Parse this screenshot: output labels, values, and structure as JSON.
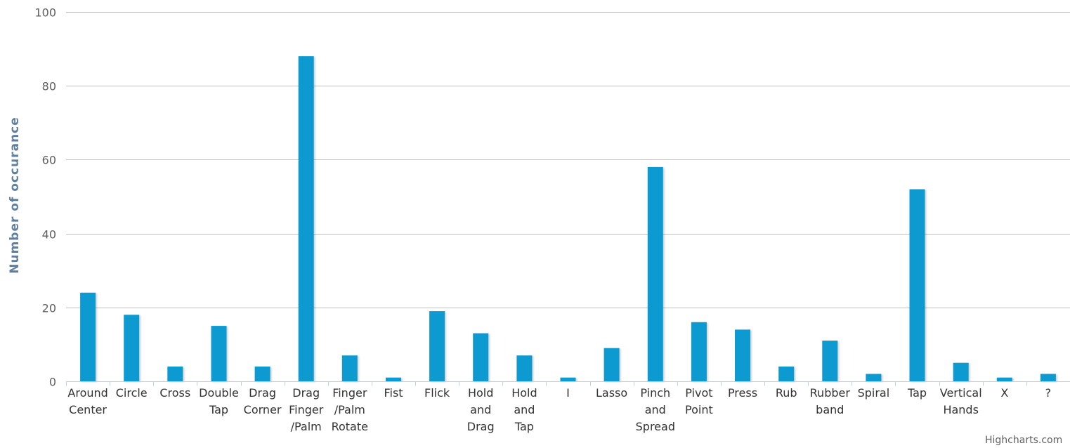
{
  "chart_data": {
    "type": "bar",
    "title": "",
    "xlabel": "",
    "ylabel": "Number of occurance",
    "ylim": [
      0,
      100
    ],
    "yticks": [
      0,
      20,
      40,
      60,
      80,
      100
    ],
    "grid": true,
    "bar_color": "#0e9ad1",
    "categories": [
      [
        "Around",
        "Center"
      ],
      [
        "Circle"
      ],
      [
        "Cross"
      ],
      [
        "Double",
        "Tap"
      ],
      [
        "Drag",
        "Corner"
      ],
      [
        "Drag",
        "Finger",
        "/Palm"
      ],
      [
        "Finger",
        "/Palm",
        "Rotate"
      ],
      [
        "Fist"
      ],
      [
        "Flick"
      ],
      [
        "Hold",
        "and",
        "Drag"
      ],
      [
        "Hold",
        "and",
        "Tap"
      ],
      [
        "I"
      ],
      [
        "Lasso"
      ],
      [
        "Pinch",
        "and",
        "Spread"
      ],
      [
        "Pivot",
        "Point"
      ],
      [
        "Press"
      ],
      [
        "Rub"
      ],
      [
        "Rubber",
        "band"
      ],
      [
        "Spiral"
      ],
      [
        "Tap"
      ],
      [
        "Vertical",
        "Hands"
      ],
      [
        "X"
      ],
      [
        "?"
      ]
    ],
    "values": [
      24,
      18,
      4,
      15,
      4,
      88,
      7,
      1,
      19,
      13,
      7,
      1,
      9,
      58,
      16,
      14,
      4,
      11,
      2,
      52,
      5,
      1,
      2
    ]
  },
  "credits": "Highcharts.com"
}
